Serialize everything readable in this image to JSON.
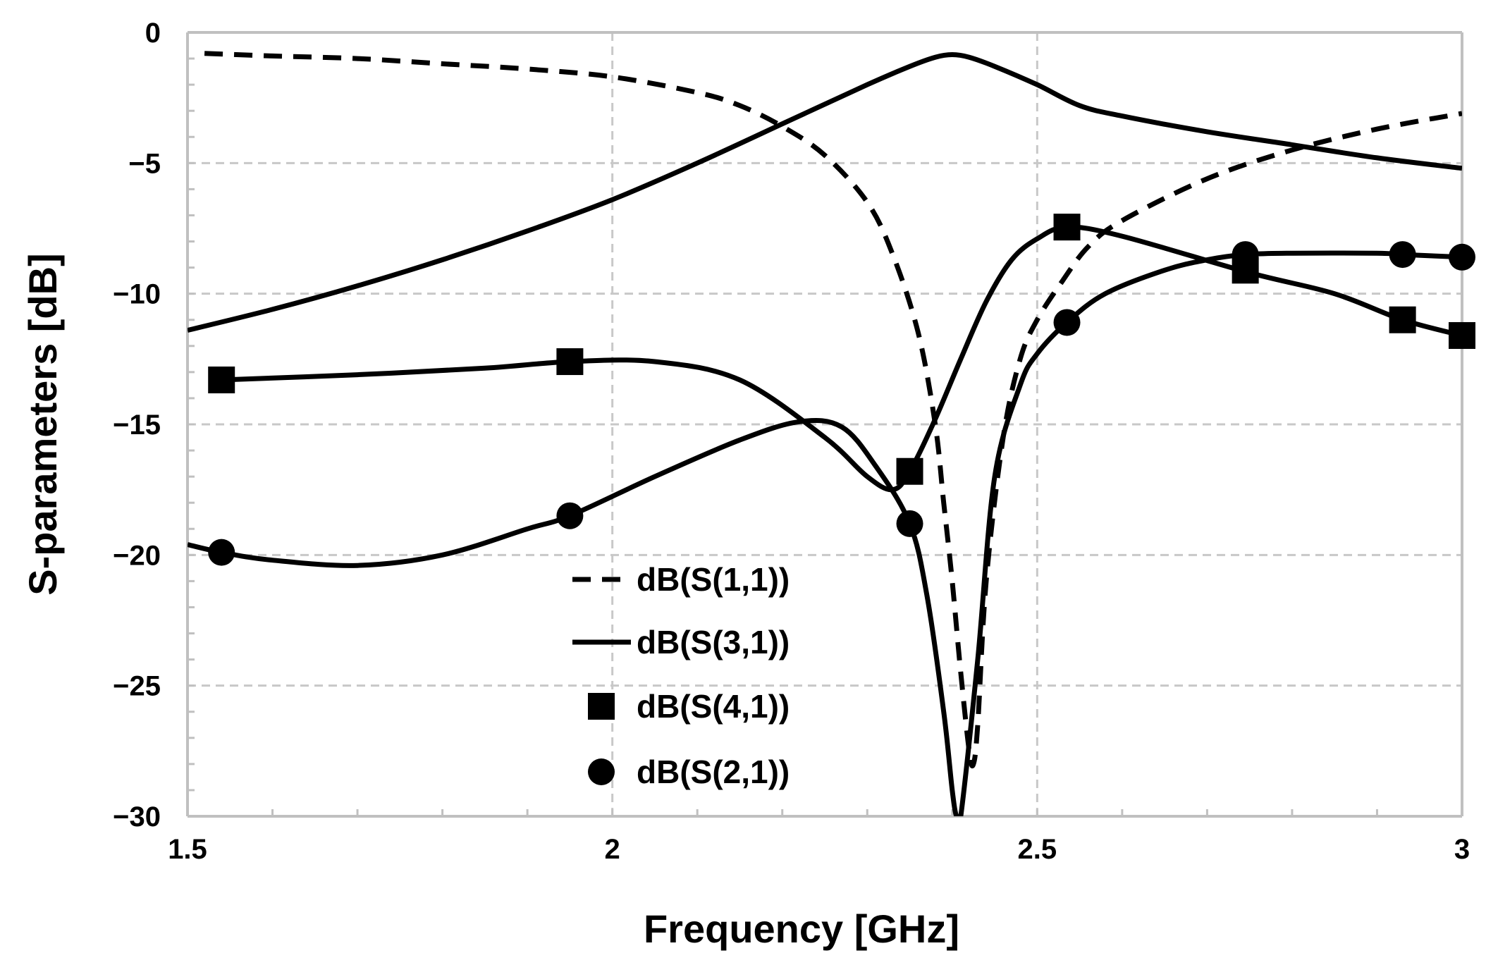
{
  "chart_data": {
    "type": "line",
    "title": "",
    "xlabel": "Frequency [GHz]",
    "ylabel": "S-parameters [dB]",
    "xlim": [
      1.5,
      3
    ],
    "ylim": [
      -30,
      0
    ],
    "x_ticks": [
      1.5,
      2,
      2.5,
      3
    ],
    "x_tick_labels": [
      "1.5",
      "2",
      "2.5",
      "3"
    ],
    "y_ticks": [
      0,
      -5,
      -10,
      -15,
      -20,
      -25,
      -30
    ],
    "y_tick_labels": [
      "0",
      "−5",
      "−10",
      "−15",
      "−20",
      "−25",
      "−30"
    ],
    "grid": true,
    "legend_position": "bottom-center",
    "series": [
      {
        "name": "dB(S(1,1))",
        "style": "dashed",
        "marker": "none",
        "x": [
          1.52,
          1.6,
          1.7,
          1.8,
          1.9,
          2.0,
          2.1,
          2.15,
          2.2,
          2.25,
          2.3,
          2.33,
          2.36,
          2.38,
          2.39,
          2.4,
          2.41,
          2.42,
          2.425,
          2.43,
          2.44,
          2.46,
          2.48,
          2.5,
          2.53,
          2.56,
          2.6,
          2.7,
          2.8,
          2.9,
          3.0
        ],
        "values": [
          -0.8,
          -0.9,
          -1.0,
          -1.2,
          -1.4,
          -1.7,
          -2.3,
          -2.8,
          -3.6,
          -4.7,
          -6.5,
          -8.5,
          -11.5,
          -15.0,
          -18.0,
          -21.0,
          -24.5,
          -27.5,
          -28.0,
          -26.5,
          -21.0,
          -15.5,
          -12.5,
          -11.0,
          -9.5,
          -8.2,
          -7.2,
          -5.6,
          -4.5,
          -3.7,
          -3.1
        ]
      },
      {
        "name": "dB(S(3,1))",
        "style": "solid",
        "marker": "none",
        "x": [
          1.5,
          1.6,
          1.7,
          1.8,
          1.9,
          2.0,
          2.1,
          2.2,
          2.3,
          2.35,
          2.38,
          2.4,
          2.42,
          2.45,
          2.5,
          2.55,
          2.6,
          2.7,
          2.8,
          2.9,
          3.0
        ],
        "values": [
          -11.4,
          -10.6,
          -9.7,
          -8.7,
          -7.6,
          -6.4,
          -5.0,
          -3.5,
          -2.0,
          -1.3,
          -0.95,
          -0.85,
          -0.95,
          -1.3,
          -2.0,
          -2.8,
          -3.2,
          -3.8,
          -4.3,
          -4.8,
          -5.2
        ]
      },
      {
        "name": "dB(S(4,1))",
        "style": "solid",
        "marker": "square",
        "x": [
          1.54,
          1.7,
          1.85,
          1.95,
          2.05,
          2.15,
          2.25,
          2.3,
          2.33,
          2.35,
          2.38,
          2.41,
          2.44,
          2.47,
          2.5,
          2.535,
          2.6,
          2.75,
          2.85,
          2.93,
          3.0
        ],
        "values": [
          -13.3,
          -13.1,
          -12.85,
          -12.6,
          -12.6,
          -13.3,
          -15.5,
          -17.0,
          -17.5,
          -16.8,
          -14.8,
          -12.5,
          -10.3,
          -8.7,
          -7.9,
          -7.45,
          -7.8,
          -9.2,
          -10.0,
          -11.0,
          -11.6
        ],
        "markers_x": [
          1.54,
          1.95,
          2.35,
          2.535,
          2.745,
          2.93,
          3.0
        ],
        "markers_y": [
          -13.3,
          -12.6,
          -16.8,
          -7.45,
          -9.1,
          -11.0,
          -11.6
        ]
      },
      {
        "name": "dB(S(2,1))",
        "style": "solid",
        "marker": "circle",
        "x": [
          1.5,
          1.54,
          1.6,
          1.7,
          1.8,
          1.9,
          1.95,
          2.05,
          2.15,
          2.22,
          2.27,
          2.31,
          2.35,
          2.37,
          2.39,
          2.4,
          2.405,
          2.41,
          2.43,
          2.45,
          2.48,
          2.5,
          2.535,
          2.58,
          2.65,
          2.7,
          2.745,
          2.8,
          2.9,
          2.93,
          3.0
        ],
        "values": [
          -19.6,
          -19.9,
          -20.2,
          -20.4,
          -20.0,
          -19.0,
          -18.5,
          -17.0,
          -15.6,
          -14.9,
          -15.1,
          -16.6,
          -18.8,
          -21.5,
          -26.0,
          -29.0,
          -30.0,
          -30.0,
          -24.0,
          -17.0,
          -13.5,
          -12.3,
          -11.1,
          -10.0,
          -9.1,
          -8.7,
          -8.5,
          -8.45,
          -8.45,
          -8.5,
          -8.6
        ],
        "markers_x": [
          1.54,
          1.95,
          2.35,
          2.535,
          2.745,
          2.93,
          3.0
        ],
        "markers_y": [
          -19.9,
          -18.5,
          -18.8,
          -11.1,
          -8.5,
          -8.5,
          -8.6
        ]
      }
    ]
  },
  "colors": {
    "line": "#000000",
    "grid": "#c8c8c8",
    "axis": "#c0c0c0",
    "background": "#ffffff"
  }
}
